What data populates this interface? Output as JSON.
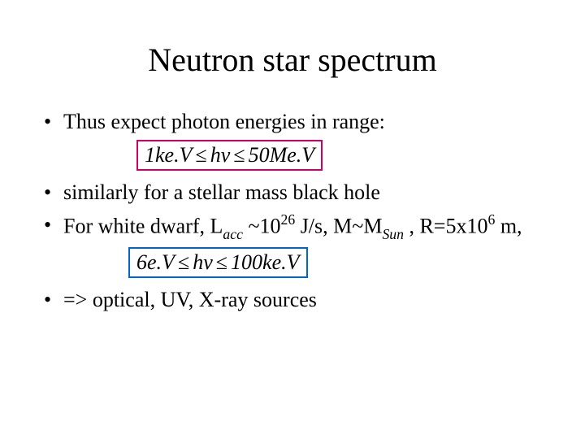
{
  "title": "Neutron star spectrum",
  "bullets": {
    "b1": "Thus expect photon energies in range:",
    "b2": "similarly for a stellar mass black hole",
    "b3_pre": "For white dwarf, L",
    "b3_sub1": "acc",
    "b3_mid1": " ~10",
    "b3_sup1": "26",
    "b3_mid2": " J/s, M~M",
    "b3_sub2": "Sun",
    "b3_mid3": " , R=5x10",
    "b3_sup2": "6",
    "b3_end": " m,",
    "b4": "=> optical, UV, X-ray sources"
  },
  "formula1": {
    "lhs_num": "1",
    "lhs_unit_pre": "ke.",
    "lhs_unit_v": "V",
    "le1": "≤",
    "mid_h": "h",
    "mid_nu": "ν",
    "le2": "≤",
    "rhs_num": "50",
    "rhs_unit_pre": "Me.",
    "rhs_unit_v": "V",
    "border_color": "#cc0066"
  },
  "formula2": {
    "lhs_num": "6",
    "lhs_unit_pre": "e.",
    "lhs_unit_v": "V",
    "le1": "≤",
    "mid_h": "h",
    "mid_nu": "ν",
    "le2": "≤",
    "rhs_num": "100",
    "rhs_unit_pre": "ke.",
    "rhs_unit_v": "V",
    "border_color": "#0066cc"
  },
  "style": {
    "background": "#ffffff",
    "text_color": "#000000",
    "title_fontsize": 40,
    "body_fontsize": 26,
    "font_family": "Times New Roman"
  }
}
